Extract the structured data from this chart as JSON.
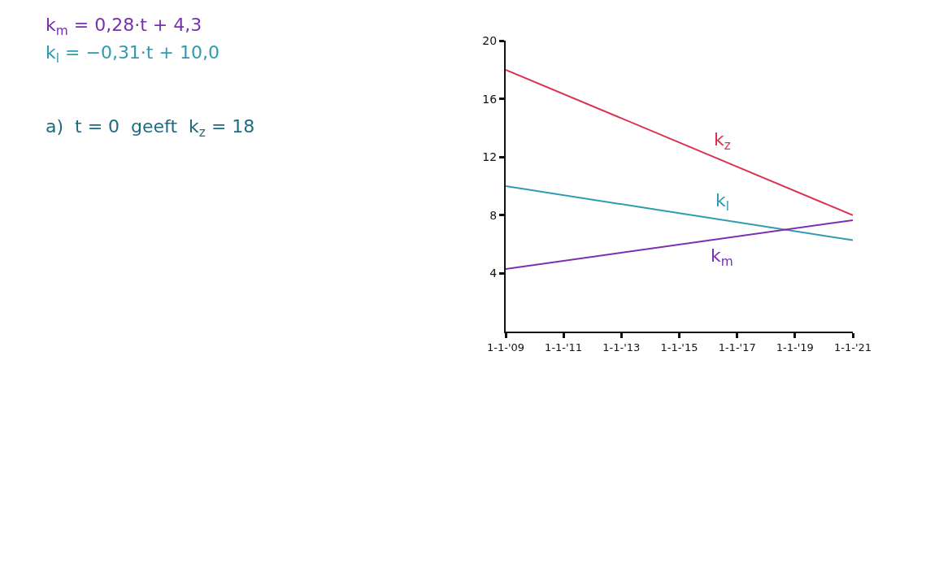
{
  "chart_data": {
    "type": "line",
    "annotations": [
      "k$_{m}$ = 0,28·t + 4,3",
      "k$_{l}$ = −0,31·t + 10,0",
      "a)  t = 0  geeft  k$_{z}$ = 18"
    ],
    "x": [
      "2009-01-01",
      "2021-01-01"
    ],
    "series": [
      {
        "name": "k$_{z}$",
        "color": "#d9334f",
        "values": [
          18,
          8
        ]
      },
      {
        "name": "k$_{l}$",
        "color": "#2f9bb0",
        "values": [
          10,
          6.28
        ]
      },
      {
        "name": "k$_{m}$",
        "color": "#7a2fb0",
        "values": [
          4.3,
          7.66
        ]
      }
    ],
    "xlim": [
      "2009-01-01",
      "2021-01-01"
    ],
    "xticks": [
      {
        "value": "2009-01-01",
        "label": "1-1-'09"
      },
      {
        "value": "2011-01-01",
        "label": "1-1-'11"
      },
      {
        "value": "2013-01-01",
        "label": "1-1-'13"
      },
      {
        "value": "2015-01-01",
        "label": "1-1-'15"
      },
      {
        "value": "2017-01-01",
        "label": "1-1-'17"
      },
      {
        "value": "2019-01-01",
        "label": "1-1-'19"
      },
      {
        "value": "2021-01-01",
        "label": "1-1-'21"
      }
    ],
    "ylim": [
      0,
      20
    ],
    "yticks": [
      4,
      8,
      12,
      16,
      20
    ],
    "grid": false,
    "legend": false,
    "marker": "none",
    "line_style": "solid"
  }
}
